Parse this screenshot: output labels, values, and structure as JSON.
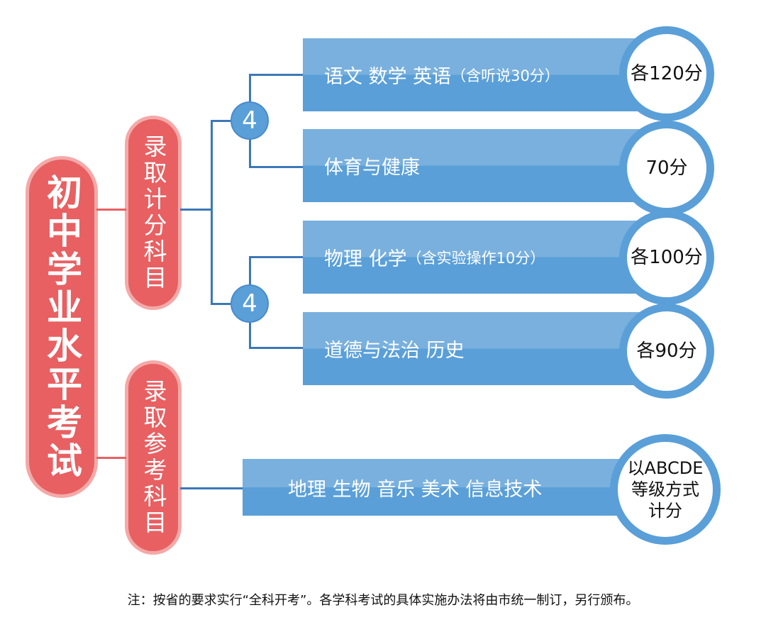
{
  "title": "初中学业水平考试",
  "branches": [
    {
      "label": "录取计分科目"
    },
    {
      "label": "录取参考科目"
    }
  ],
  "groups": [
    {
      "count": "4"
    },
    {
      "count": "4"
    }
  ],
  "subjects": [
    {
      "name": "语文  数学  英语",
      "note": "（含听说30分）",
      "score": "各120分"
    },
    {
      "name": "体育与健康",
      "note": "",
      "score": "70分"
    },
    {
      "name": "物理  化学",
      "note": "（含实验操作10分）",
      "score": "各100分"
    },
    {
      "name": "道德与法治  历史",
      "note": "",
      "score": "各90分"
    },
    {
      "name": "地理  生物  音乐  美术  信息技术",
      "note": "",
      "score": "以ABCDE等级方式计分",
      "score_lines": [
        "以ABCDE",
        "等级方式",
        "计分"
      ]
    }
  ],
  "footnote": "注：按省的要求实行“全科开考”。各学科考试的具体实施办法将由市统一制订，另行颁布。",
  "colors": {
    "red": "#e86062",
    "blue": "#5a9fd8",
    "light_blue": "#79b0de"
  }
}
